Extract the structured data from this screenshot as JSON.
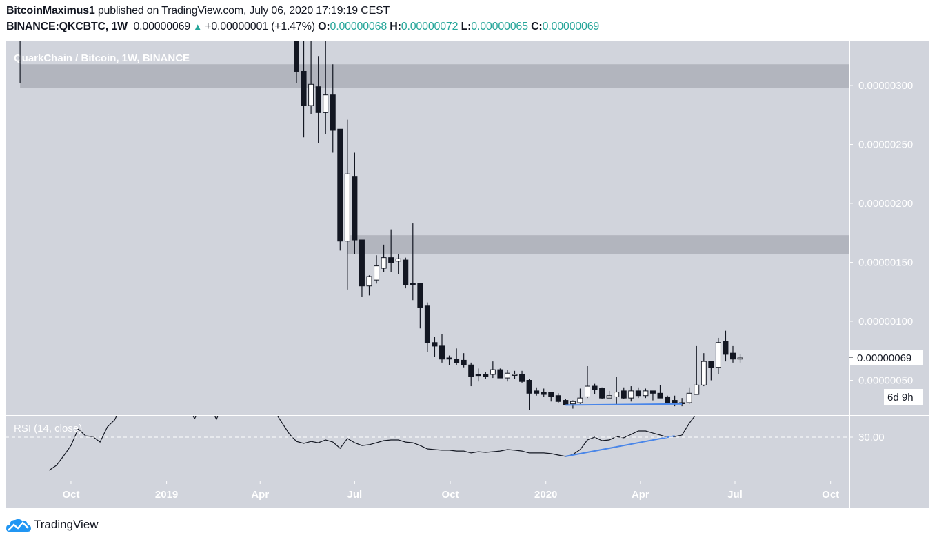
{
  "header": {
    "author": "BitcoinMaximus1",
    "published": "published on TradingView.com, July 06, 2020 17:19:19 CEST",
    "symbol": "BINANCE:QKCBTC, 1W",
    "last": "0.00000069",
    "change": "+0.00000001 (+1.47%)",
    "o_label": "O:",
    "o": "0.00000068",
    "h_label": "H:",
    "h": "0.00000072",
    "l_label": "L:",
    "l": "0.00000065",
    "c_label": "C:",
    "c": "0.00000069",
    "up_icon": "triangle-up-icon"
  },
  "footer": {
    "brand": "TradingView",
    "logo_icon": "tradingview-cloud-icon"
  },
  "colors": {
    "background": "#d1d4dc",
    "zone": "#b2b5be",
    "candle_dark": "#131722",
    "candle_light": "#ffffff",
    "trendline": "#4a86e8",
    "change": "#26a69a"
  },
  "chart_data": {
    "type": "candlestick",
    "title": "QuarkChain / Bitcoin, 1W, BINANCE",
    "interval": "1W",
    "price_axis": {
      "ticks": [
        "0.00000300",
        "0.00000250",
        "0.00000200",
        "0.00000150",
        "0.00000100",
        "0.00000050"
      ],
      "values": [
        3e-06,
        2.5e-06,
        2e-06,
        1.5e-06,
        1e-06,
        5e-07
      ]
    },
    "current_price_label": "0.00000069",
    "countdown_label": "6d 9h",
    "time_axis": [
      {
        "label": "Oct",
        "date": "2018-10-01"
      },
      {
        "label": "2019",
        "date": "2019-01-01"
      },
      {
        "label": "Apr",
        "date": "2019-04-01"
      },
      {
        "label": "Jul",
        "date": "2019-07-01"
      },
      {
        "label": "Oct",
        "date": "2019-10-01"
      },
      {
        "label": "2020",
        "date": "2020-01-01"
      },
      {
        "label": "Apr",
        "date": "2020-04-01"
      },
      {
        "label": "Jul",
        "date": "2020-07-01"
      },
      {
        "label": "Oct",
        "date": "2020-10-01"
      }
    ],
    "first_candle_date": "2019-05-06",
    "early_candle": {
      "date": "2018-08-13",
      "o": 3.4e-06,
      "h": 4e-06,
      "l": 3.02e-06,
      "c": 3.4e-06
    },
    "candles_ohlc": [
      [
        3.49e-06,
        3.8e-06,
        3.02e-06,
        3.12e-06
      ],
      [
        3.12e-06,
        3.53e-06,
        2.56e-06,
        2.83e-06
      ],
      [
        2.83e-06,
        3.6e-06,
        2.76e-06,
        3.01e-06
      ],
      [
        2.99e-06,
        3.25e-06,
        2.51e-06,
        2.77e-06
      ],
      [
        2.77e-06,
        3.7e-06,
        2.59e-06,
        2.92e-06
      ],
      [
        2.92e-06,
        3.18e-06,
        2.43e-06,
        2.62e-06
      ],
      [
        2.63e-06,
        2.63e-06,
        1.6e-06,
        1.68e-06
      ],
      [
        1.68e-06,
        2.71e-06,
        1.27e-06,
        2.25e-06
      ],
      [
        2.23e-06,
        2.43e-06,
        1.57e-06,
        1.69e-06
      ],
      [
        1.69e-06,
        1.69e-06,
        1.21e-06,
        1.3e-06
      ],
      [
        1.3e-06,
        1.39e-06,
        1.22e-06,
        1.38e-06
      ],
      [
        1.35e-06,
        1.56e-06,
        1.32e-06,
        1.47e-06
      ],
      [
        1.45e-06,
        1.65e-06,
        1.42e-06,
        1.54e-06
      ],
      [
        1.54e-06,
        1.78e-06,
        1.42e-06,
        1.5e-06
      ],
      [
        1.51e-06,
        1.57e-06,
        1.4e-06,
        1.53e-06
      ],
      [
        1.52e-06,
        1.54e-06,
        1.28e-06,
        1.31e-06
      ],
      [
        1.32e-06,
        1.83e-06,
        1.18e-06,
        1.31e-06
      ],
      [
        1.32e-06,
        1.32e-06,
        9.4e-07,
        1.12e-06
      ],
      [
        1.13e-06,
        1.16e-06,
        7.4e-07,
        8.2e-07
      ],
      [
        8.2e-07,
        8.7e-07,
        7e-07,
        7.9e-07
      ],
      [
        7.9e-07,
        8.9e-07,
        6.5e-07,
        6.8e-07
      ],
      [
        6.9e-07,
        7.1e-07,
        6.3e-07,
        6.8e-07
      ],
      [
        6.8e-07,
        7.7e-07,
        6.3e-07,
        6.5e-07
      ],
      [
        6.7e-07,
        7.3e-07,
        6.1e-07,
        6.3e-07
      ],
      [
        6.3e-07,
        6.5e-07,
        4.5e-07,
        5.3e-07
      ],
      [
        5.5e-07,
        6e-07,
        4.9e-07,
        5.4e-07
      ],
      [
        5.5e-07,
        5.7e-07,
        5.1e-07,
        5.3e-07
      ],
      [
        5.5e-07,
        6.6e-07,
        5.2e-07,
        5.9e-07
      ],
      [
        5.9e-07,
        6e-07,
        5.2e-07,
        5.2e-07
      ],
      [
        5.2e-07,
        5.9e-07,
        4.9e-07,
        5.6e-07
      ],
      [
        5.5e-07,
        5.8e-07,
        5.1e-07,
        5.5e-07
      ],
      [
        5.5e-07,
        5.8e-07,
        4.8e-07,
        4.9e-07
      ],
      [
        5e-07,
        5.1e-07,
        2.5e-07,
        3.9e-07
      ],
      [
        4.1e-07,
        4.4e-07,
        3.7e-07,
        3.9e-07
      ],
      [
        4e-07,
        4.3e-07,
        3.6e-07,
        3.8e-07
      ],
      [
        4e-07,
        4e-07,
        3.2e-07,
        3.6e-07
      ],
      [
        3.7e-07,
        3.9e-07,
        3.1e-07,
        3.2e-07
      ],
      [
        3.3e-07,
        3.4e-07,
        2.9e-07,
        2.9e-07
      ],
      [
        3e-07,
        3.3e-07,
        2.6e-07,
        3.2e-07
      ],
      [
        3.1e-07,
        4.3e-07,
        3e-07,
        3.5e-07
      ],
      [
        3.6e-07,
        6.2e-07,
        3.5e-07,
        4.5e-07
      ],
      [
        4.5e-07,
        4.7e-07,
        3.8e-07,
        4.2e-07
      ],
      [
        4.3e-07,
        4.4e-07,
        3.4e-07,
        3.5e-07
      ],
      [
        3.5e-07,
        4.1e-07,
        3.5e-07,
        3.7e-07
      ],
      [
        3.6e-07,
        5.3e-07,
        2.9e-07,
        4e-07
      ],
      [
        4.1e-07,
        4.4e-07,
        3.4e-07,
        3.5e-07
      ],
      [
        3.5e-07,
        4.5e-07,
        3.2e-07,
        4.1e-07
      ],
      [
        4.1e-07,
        4.4e-07,
        3.5e-07,
        3.7e-07
      ],
      [
        3.7e-07,
        4.3e-07,
        3.5e-07,
        4.1e-07
      ],
      [
        4.1e-07,
        4.1e-07,
        3.3e-07,
        3.9e-07
      ],
      [
        3.9e-07,
        4.6e-07,
        3.5e-07,
        3.5e-07
      ],
      [
        3.6e-07,
        3.7e-07,
        3.1e-07,
        3.1e-07
      ],
      [
        3.3e-07,
        3.7e-07,
        2.8e-07,
        3.1e-07
      ],
      [
        3.1e-07,
        3.5e-07,
        2.8e-07,
        3.1e-07
      ],
      [
        3.1e-07,
        4.4e-07,
        3e-07,
        3.9e-07
      ],
      [
        3.8e-07,
        7.9e-07,
        3.8e-07,
        4.6e-07
      ],
      [
        4.6e-07,
        7.3e-07,
        4.5e-07,
        6.6e-07
      ],
      [
        6.6e-07,
        6.6e-07,
        5e-07,
        6.1e-07
      ],
      [
        6.1e-07,
        8.6e-07,
        5.5e-07,
        8.2e-07
      ],
      [
        8.3e-07,
        9.2e-07,
        6.6e-07,
        7.2e-07
      ],
      [
        7.3e-07,
        7.9e-07,
        6.5e-07,
        6.8e-07
      ],
      [
        6.8e-07,
        7.2e-07,
        6.5e-07,
        6.9e-07
      ]
    ],
    "zones": [
      {
        "from": "2018-08-13",
        "low": 2.98e-06,
        "high": 3.18e-06
      },
      {
        "from": "2019-06-24",
        "low": 1.57e-06,
        "high": 1.73e-06
      }
    ],
    "price_trendline": {
      "from": {
        "date": "2020-01-20",
        "price": 2.9e-07
      },
      "to": {
        "date": "2020-05-11",
        "price": 3e-07
      }
    },
    "rsi": {
      "label": "RSI (14, close)",
      "level_label": "30.00",
      "level": 30,
      "start_date": "2018-09-10",
      "values": [
        14.5,
        16.8,
        21.3,
        26.1,
        33.9,
        30.6,
        30.3,
        27.7,
        34.8,
        38.1,
        45,
        48,
        50,
        52,
        50,
        47,
        45,
        44,
        46,
        44,
        38.7,
        45,
        45,
        38.4,
        46,
        50,
        52,
        50,
        48,
        47,
        45,
        42,
        36.8,
        31.6,
        28,
        27.1,
        28,
        27.4,
        28.7,
        27.7,
        24.8,
        29.4,
        27.4,
        26.1,
        26.5,
        27.4,
        28.4,
        28.7,
        28.7,
        27.7,
        27.4,
        26.1,
        24.5,
        24.2,
        23.9,
        23.9,
        23.5,
        23.5,
        22.6,
        23.2,
        22.9,
        23.2,
        23.5,
        24.2,
        23.9,
        23.5,
        22.6,
        22.6,
        22.6,
        22.3,
        21.6,
        21,
        21.9,
        24.2,
        28.7,
        30,
        28.4,
        28.7,
        30.3,
        29.7,
        31.3,
        32.9,
        32.9,
        31.9,
        31,
        30,
        30.3,
        31,
        36.5,
        41,
        50,
        55,
        58,
        62,
        58,
        56
      ],
      "trendline": {
        "from": {
          "date": "2020-01-20",
          "value": 21
        },
        "to": {
          "date": "2020-05-04",
          "value": 30.6
        }
      }
    }
  }
}
